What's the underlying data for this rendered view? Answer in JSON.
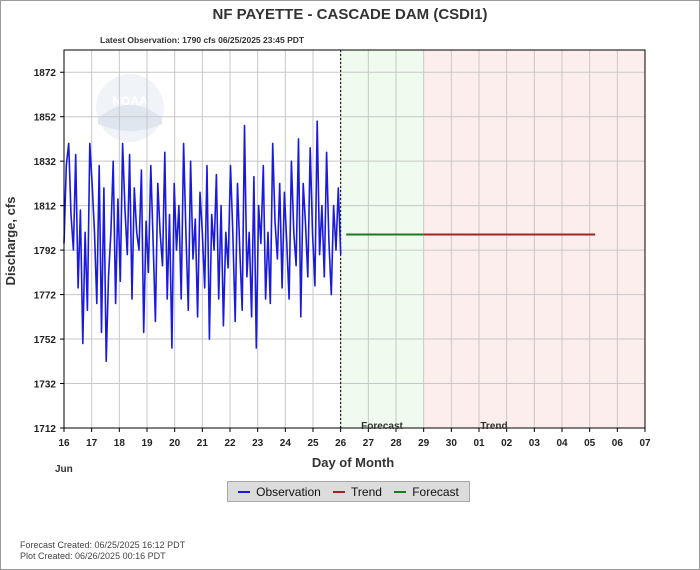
{
  "header": {
    "title": "NF PAYETTE - CASCADE DAM  (CSDI1)",
    "latest_observation": "Latest Observation: 1790 cfs 06/25/2025 23:45 PDT"
  },
  "logo": {
    "text": "NOAA"
  },
  "footer": {
    "forecast_created": "Forecast Created: 06/25/2025 16:12 PDT",
    "plot_created": "Plot Created: 06/26/2025 00:16 PDT"
  },
  "colors": {
    "observation": "#1a1adc",
    "trend": "#a32222",
    "forecast": "#1e7a1e",
    "forecast_region": "#eefbee",
    "trend_region": "#fdeeee",
    "grid": "#c8c8c8"
  },
  "chart_data": {
    "type": "line",
    "xlabel": "Day of Month",
    "ylabel": "Discharge, cfs",
    "month_label": "Jun",
    "x_ticks": [
      "16",
      "17",
      "18",
      "19",
      "20",
      "21",
      "22",
      "23",
      "24",
      "25",
      "26",
      "27",
      "28",
      "29",
      "30",
      "01",
      "02",
      "03",
      "04",
      "05",
      "06",
      "07"
    ],
    "ylim": [
      1712,
      1882
    ],
    "y_ticks": [
      1712,
      1732,
      1752,
      1772,
      1792,
      1812,
      1832,
      1852,
      1872
    ],
    "region_labels": {
      "forecast": "Forecast",
      "trend": "Trend"
    },
    "regions": {
      "observed_end_day": 10,
      "forecast_end_day": 13,
      "trend_end_day": 21
    },
    "series": [
      {
        "name": "Observation",
        "x_start_day": 0,
        "x_end_day": 10,
        "values": [
          1795,
          1830,
          1840,
          1808,
          1792,
          1835,
          1775,
          1810,
          1750,
          1800,
          1765,
          1840,
          1822,
          1800,
          1768,
          1830,
          1755,
          1820,
          1742,
          1780,
          1800,
          1832,
          1768,
          1815,
          1778,
          1840,
          1810,
          1790,
          1835,
          1770,
          1820,
          1800,
          1792,
          1828,
          1755,
          1805,
          1782,
          1830,
          1796,
          1760,
          1822,
          1800,
          1785,
          1836,
          1770,
          1808,
          1748,
          1822,
          1792,
          1812,
          1770,
          1840,
          1800,
          1765,
          1832,
          1788,
          1806,
          1762,
          1818,
          1800,
          1775,
          1830,
          1752,
          1808,
          1792,
          1826,
          1770,
          1812,
          1758,
          1800,
          1784,
          1830,
          1800,
          1760,
          1822,
          1792,
          1765,
          1848,
          1780,
          1800,
          1762,
          1825,
          1748,
          1812,
          1795,
          1830,
          1770,
          1800,
          1768,
          1840,
          1805,
          1788,
          1822,
          1775,
          1818,
          1796,
          1770,
          1832,
          1800,
          1785,
          1842,
          1762,
          1822,
          1804,
          1780,
          1838,
          1800,
          1776,
          1850,
          1790,
          1812,
          1780,
          1836,
          1796,
          1772,
          1812,
          1792,
          1820,
          1790
        ],
        "final_value": 1790
      },
      {
        "name": "Forecast",
        "points": [
          [
            10.2,
            1799
          ],
          [
            13,
            1799
          ]
        ]
      },
      {
        "name": "Trend",
        "points": [
          [
            13,
            1799
          ],
          [
            19.2,
            1799
          ]
        ]
      }
    ]
  }
}
